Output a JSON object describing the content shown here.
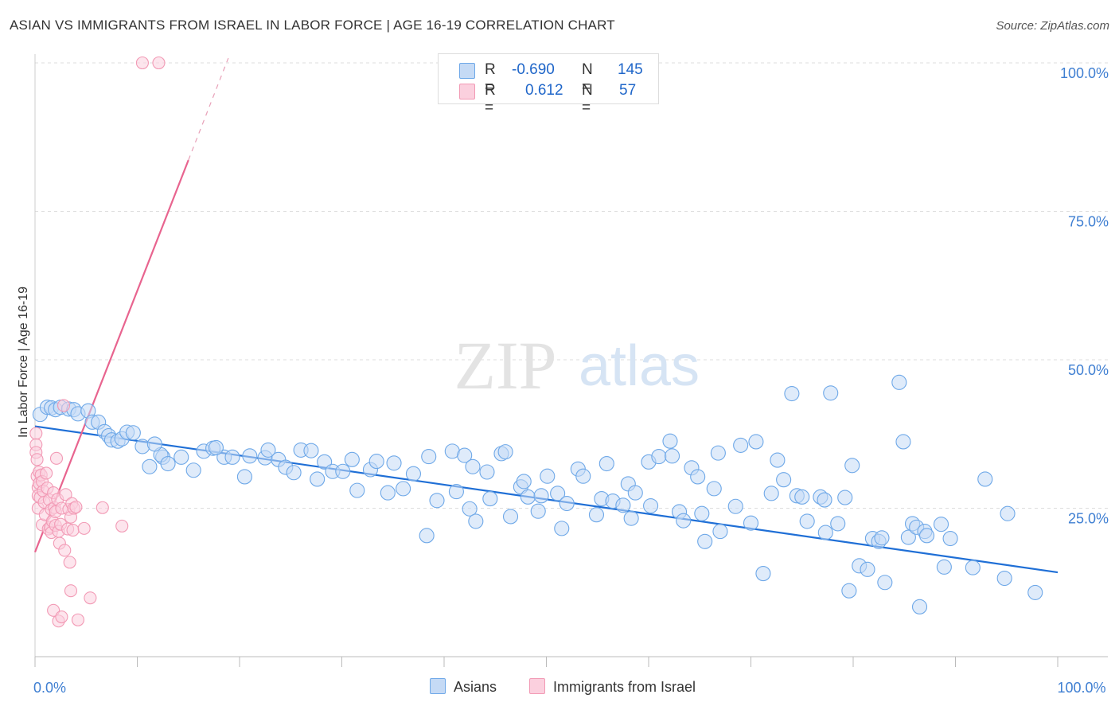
{
  "title": "ASIAN VS IMMIGRANTS FROM ISRAEL IN LABOR FORCE | AGE 16-19 CORRELATION CHART",
  "source": "Source: ZipAtlas.com",
  "watermark": {
    "zip": "ZIP",
    "atlas": "atlas"
  },
  "legend": {
    "r_label": "R =",
    "n_label": "N =",
    "rows": [
      {
        "r": "-0.690",
        "n": "145",
        "color": "#6ea8e8",
        "fill": "#c5daf5"
      },
      {
        "r": "0.612",
        "n": "57",
        "color": "#f29ab5",
        "fill": "#fbd0de"
      }
    ]
  },
  "bottom_legend": [
    {
      "label": "Asians",
      "color": "#6ea8e8",
      "fill": "#c5daf5"
    },
    {
      "label": "Immigrants from Israel",
      "color": "#f29ab5",
      "fill": "#fbd0de"
    }
  ],
  "chart_data": {
    "type": "scatter",
    "title": "ASIAN VS IMMIGRANTS FROM ISRAEL IN LABOR FORCE | AGE 16-19 CORRELATION CHART",
    "xlabel": "",
    "ylabel": "In Labor Force | Age 16-19",
    "xlim": [
      0,
      100
    ],
    "ylim": [
      0,
      100
    ],
    "x_tick_labels": [
      {
        "value": 0,
        "label": "0.0%"
      },
      {
        "value": 100,
        "label": "100.0%"
      }
    ],
    "y_tick_labels": [
      {
        "value": 25,
        "label": "25.0%"
      },
      {
        "value": 50,
        "label": "50.0%"
      },
      {
        "value": 75,
        "label": "75.0%"
      },
      {
        "value": 100,
        "label": "100.0%"
      }
    ],
    "grid": true,
    "series": [
      {
        "name": "Asians",
        "color": "#6ea8e8",
        "fill": "#c5daf5",
        "trend": {
          "x": [
            0,
            100
          ],
          "y": [
            38.8,
            14.2
          ],
          "dashed_from": null
        },
        "points": [
          [
            0.5,
            40.8
          ],
          [
            1.2,
            42
          ],
          [
            1.6,
            41.9
          ],
          [
            2.0,
            41.6
          ],
          [
            2.5,
            42
          ],
          [
            3.3,
            41.7
          ],
          [
            3.8,
            41.6
          ],
          [
            4.2,
            40.9
          ],
          [
            5.2,
            41.4
          ],
          [
            5.6,
            39.5
          ],
          [
            6.2,
            39.5
          ],
          [
            6.8,
            37.9
          ],
          [
            7.2,
            37.2
          ],
          [
            7.5,
            36.5
          ],
          [
            8.1,
            36.3
          ],
          [
            8.5,
            36.7
          ],
          [
            9.0,
            37.8
          ],
          [
            9.6,
            37.7
          ],
          [
            10.5,
            35.4
          ],
          [
            11.2,
            32.0
          ],
          [
            12.5,
            33.6
          ],
          [
            12.3,
            34
          ],
          [
            11.7,
            35.8
          ],
          [
            13.0,
            32.5
          ],
          [
            14.3,
            33.6
          ],
          [
            15.5,
            31.4
          ],
          [
            16.5,
            34.6
          ],
          [
            17.4,
            35.1
          ],
          [
            18.5,
            33.6
          ],
          [
            17.7,
            35.2
          ],
          [
            19.3,
            33.6
          ],
          [
            20.5,
            30.3
          ],
          [
            21.0,
            33.8
          ],
          [
            22.5,
            33.5
          ],
          [
            22.8,
            34.8
          ],
          [
            23.8,
            33.2
          ],
          [
            24.5,
            31.9
          ],
          [
            25.3,
            31
          ],
          [
            26.0,
            34.8
          ],
          [
            27.0,
            34.7
          ],
          [
            27.6,
            29.9
          ],
          [
            28.3,
            32.8
          ],
          [
            29.1,
            31.2
          ],
          [
            30.1,
            31.2
          ],
          [
            31.0,
            33.2
          ],
          [
            31.5,
            28
          ],
          [
            32.8,
            31.5
          ],
          [
            33.4,
            32.9
          ],
          [
            34.5,
            27.6
          ],
          [
            35.1,
            32.6
          ],
          [
            36.0,
            28.3
          ],
          [
            37.0,
            30.8
          ],
          [
            38.5,
            33.7
          ],
          [
            38.3,
            20.4
          ],
          [
            39.3,
            26.3
          ],
          [
            40.8,
            34.6
          ],
          [
            41.2,
            27.8
          ],
          [
            42.0,
            33.9
          ],
          [
            42.5,
            24.9
          ],
          [
            42.8,
            32.0
          ],
          [
            43.1,
            22.8
          ],
          [
            44.2,
            31.1
          ],
          [
            44.5,
            26.6
          ],
          [
            45.6,
            34.2
          ],
          [
            46.0,
            34.5
          ],
          [
            46.5,
            23.6
          ],
          [
            47.5,
            28.6
          ],
          [
            47.8,
            29.5
          ],
          [
            48.2,
            26.9
          ],
          [
            49.2,
            24.5
          ],
          [
            49.5,
            27.1
          ],
          [
            50.1,
            30.4
          ],
          [
            51.1,
            27.5
          ],
          [
            51.5,
            21.6
          ],
          [
            52.0,
            25.8
          ],
          [
            53.1,
            31.6
          ],
          [
            53.6,
            30.4
          ],
          [
            54.9,
            23.9
          ],
          [
            55.4,
            26.6
          ],
          [
            55.9,
            32.5
          ],
          [
            56.5,
            26.2
          ],
          [
            57.5,
            25.5
          ],
          [
            58.0,
            29.1
          ],
          [
            58.3,
            23.3
          ],
          [
            58.7,
            27.6
          ],
          [
            60.0,
            32.8
          ],
          [
            60.2,
            25.4
          ],
          [
            61.0,
            33.7
          ],
          [
            62.1,
            36.3
          ],
          [
            62.3,
            33.8
          ],
          [
            63.0,
            24.4
          ],
          [
            63.4,
            22.9
          ],
          [
            64.2,
            31.8
          ],
          [
            64.8,
            30.3
          ],
          [
            65.2,
            24.1
          ],
          [
            65.5,
            19.4
          ],
          [
            66.4,
            28.3
          ],
          [
            66.8,
            34.3
          ],
          [
            67.0,
            21.1
          ],
          [
            68.5,
            25.3
          ],
          [
            69.0,
            35.6
          ],
          [
            70.0,
            22.5
          ],
          [
            70.5,
            36.2
          ],
          [
            71.2,
            14.0
          ],
          [
            72.0,
            27.5
          ],
          [
            72.6,
            33.1
          ],
          [
            73.2,
            29.8
          ],
          [
            74.0,
            44.3
          ],
          [
            74.5,
            27.1
          ],
          [
            75.0,
            26.9
          ],
          [
            75.5,
            22.8
          ],
          [
            76.8,
            26.9
          ],
          [
            77.2,
            26.4
          ],
          [
            77.8,
            44.4
          ],
          [
            77.3,
            20.9
          ],
          [
            78.5,
            22.4
          ],
          [
            79.2,
            26.8
          ],
          [
            79.6,
            11.1
          ],
          [
            79.9,
            32.2
          ],
          [
            80.6,
            15.3
          ],
          [
            81.4,
            14.7
          ],
          [
            81.9,
            19.9
          ],
          [
            82.5,
            19.4
          ],
          [
            82.8,
            20.0
          ],
          [
            83.1,
            12.5
          ],
          [
            84.5,
            46.2
          ],
          [
            84.9,
            36.2
          ],
          [
            85.4,
            20.1
          ],
          [
            85.8,
            22.4
          ],
          [
            86.2,
            21.8
          ],
          [
            86.5,
            8.4
          ],
          [
            87.0,
            21.1
          ],
          [
            87.2,
            20.4
          ],
          [
            88.6,
            22.3
          ],
          [
            88.9,
            15.1
          ],
          [
            89.5,
            19.9
          ],
          [
            91.7,
            15.0
          ],
          [
            92.9,
            29.9
          ],
          [
            94.8,
            13.2
          ],
          [
            95.1,
            24.1
          ],
          [
            97.8,
            10.8
          ]
        ]
      },
      {
        "name": "Immigrants from Israel",
        "color": "#f29ab5",
        "fill": "#fbd0de",
        "trend": {
          "x": [
            0,
            18.9
          ],
          "y": [
            17.6,
            100.8
          ],
          "dashed_from": 15.0
        },
        "points": [
          [
            0.1,
            37.6
          ],
          [
            0.1,
            35.7
          ],
          [
            0.1,
            34.4
          ],
          [
            0.2,
            33.2
          ],
          [
            0.2,
            30.4
          ],
          [
            0.3,
            28.5
          ],
          [
            0.3,
            27.1
          ],
          [
            0.3,
            25.0
          ],
          [
            0.4,
            31.1
          ],
          [
            0.4,
            29.2
          ],
          [
            0.5,
            26.8
          ],
          [
            0.6,
            30.6
          ],
          [
            0.7,
            29.5
          ],
          [
            0.7,
            22.2
          ],
          [
            0.8,
            27.9
          ],
          [
            0.9,
            26.0
          ],
          [
            1.0,
            23.9
          ],
          [
            1.1,
            30.9
          ],
          [
            1.2,
            28.4
          ],
          [
            1.3,
            21.5
          ],
          [
            1.4,
            26.4
          ],
          [
            1.5,
            21.8
          ],
          [
            1.6,
            24.8
          ],
          [
            1.6,
            20.9
          ],
          [
            1.7,
            22.8
          ],
          [
            1.8,
            27.6
          ],
          [
            1.9,
            25.1
          ],
          [
            2.0,
            24.4
          ],
          [
            2.0,
            22.1
          ],
          [
            2.1,
            33.4
          ],
          [
            2.2,
            26.5
          ],
          [
            2.3,
            21.1
          ],
          [
            2.4,
            19.1
          ],
          [
            2.5,
            22.3
          ],
          [
            2.6,
            25.0
          ],
          [
            2.8,
            42.3
          ],
          [
            2.9,
            17.9
          ],
          [
            3.0,
            27.3
          ],
          [
            3.2,
            21.5
          ],
          [
            3.3,
            24.8
          ],
          [
            3.4,
            15.9
          ],
          [
            3.5,
            11.1
          ],
          [
            3.5,
            23.5
          ],
          [
            3.6,
            25.8
          ],
          [
            3.7,
            21.3
          ],
          [
            3.8,
            25.0
          ],
          [
            4.0,
            25.2
          ],
          [
            1.8,
            7.8
          ],
          [
            2.3,
            6.0
          ],
          [
            2.6,
            6.7
          ],
          [
            4.2,
            6.2
          ],
          [
            4.8,
            21.6
          ],
          [
            5.4,
            9.9
          ],
          [
            6.6,
            25.1
          ],
          [
            8.5,
            22.0
          ],
          [
            10.5,
            100.0
          ],
          [
            12.1,
            100.0
          ]
        ]
      }
    ]
  }
}
